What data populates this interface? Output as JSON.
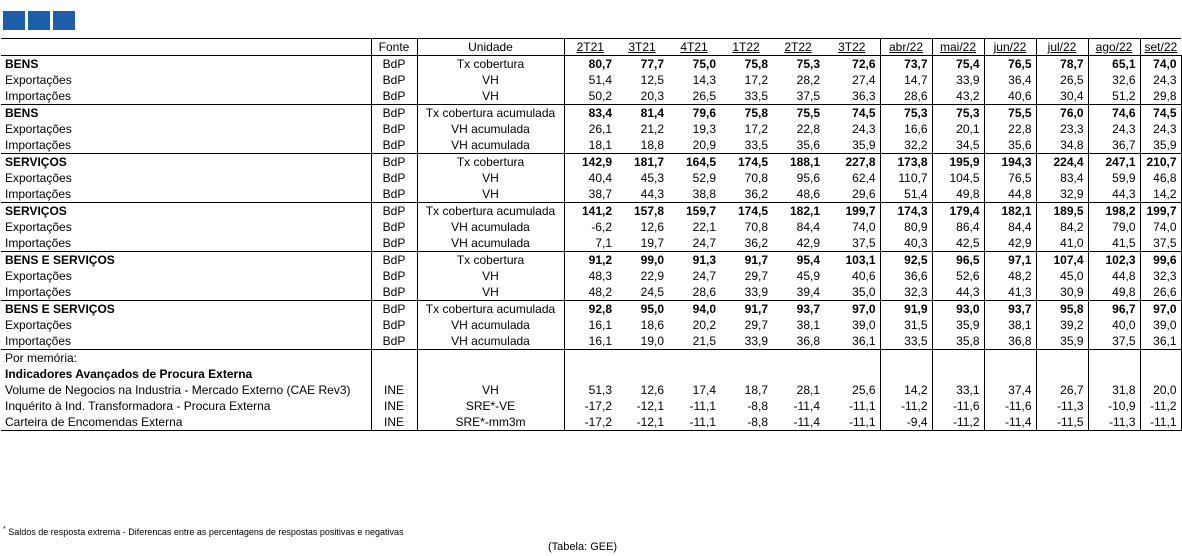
{
  "header": {
    "fonte": "Fonte",
    "unidade": "Unidade",
    "periods": [
      "2T21",
      "3T21",
      "4T21",
      "1T22",
      "2T22",
      "3T22",
      "abr/22",
      "mai/22",
      "jun/22",
      "jul/22",
      "ago/22",
      "set/22"
    ]
  },
  "groups": [
    {
      "rows": [
        {
          "label": "BENS",
          "fonte": "BdP",
          "unidade": "Tx cobertura",
          "values": [
            "80,7",
            "77,7",
            "75,0",
            "75,8",
            "75,3",
            "72,6",
            "73,7",
            "75,4",
            "76,5",
            "78,7",
            "65,1",
            "74,0"
          ],
          "bold": true
        },
        {
          "label": "Exportações",
          "fonte": "BdP",
          "unidade": "VH",
          "values": [
            "51,4",
            "12,5",
            "14,3",
            "17,2",
            "28,2",
            "27,4",
            "14,7",
            "33,9",
            "36,4",
            "26,5",
            "32,6",
            "24,3"
          ]
        },
        {
          "label": "Importações",
          "fonte": "BdP",
          "unidade": "VH",
          "values": [
            "50,2",
            "20,3",
            "26,5",
            "33,5",
            "37,5",
            "36,3",
            "28,6",
            "43,2",
            "40,6",
            "30,4",
            "51,2",
            "29,8"
          ]
        }
      ]
    },
    {
      "rows": [
        {
          "label": "BENS",
          "fonte": "BdP",
          "unidade": "Tx cobertura acumulada",
          "values": [
            "83,4",
            "81,4",
            "79,6",
            "75,8",
            "75,5",
            "74,5",
            "75,3",
            "75,3",
            "75,5",
            "76,0",
            "74,6",
            "74,5"
          ],
          "bold": true
        },
        {
          "label": "Exportações",
          "fonte": "BdP",
          "unidade": "VH acumulada",
          "values": [
            "26,1",
            "21,2",
            "19,3",
            "17,2",
            "22,8",
            "24,3",
            "16,6",
            "20,1",
            "22,8",
            "23,3",
            "24,3",
            "24,3"
          ]
        },
        {
          "label": "Importações",
          "fonte": "BdP",
          "unidade": "VH acumulada",
          "values": [
            "18,1",
            "18,8",
            "20,9",
            "33,5",
            "35,6",
            "35,9",
            "32,2",
            "34,5",
            "35,6",
            "34,8",
            "36,7",
            "35,9"
          ]
        }
      ]
    },
    {
      "rows": [
        {
          "label": "SERVIÇOS",
          "fonte": "BdP",
          "unidade": "Tx cobertura",
          "values": [
            "142,9",
            "181,7",
            "164,5",
            "174,5",
            "188,1",
            "227,8",
            "173,8",
            "195,9",
            "194,3",
            "224,4",
            "247,1",
            "210,7"
          ],
          "bold": true
        },
        {
          "label": "Exportações",
          "fonte": "BdP",
          "unidade": "VH",
          "values": [
            "40,4",
            "45,3",
            "52,9",
            "70,8",
            "95,6",
            "62,4",
            "110,7",
            "104,5",
            "76,5",
            "83,4",
            "59,9",
            "46,8"
          ]
        },
        {
          "label": "Importações",
          "fonte": "BdP",
          "unidade": "VH",
          "values": [
            "38,7",
            "44,3",
            "38,8",
            "36,2",
            "48,6",
            "29,6",
            "51,4",
            "49,8",
            "44,8",
            "32,9",
            "44,3",
            "14,2"
          ]
        }
      ]
    },
    {
      "rows": [
        {
          "label": "SERVIÇOS",
          "fonte": "BdP",
          "unidade": "Tx cobertura acumulada",
          "values": [
            "141,2",
            "157,8",
            "159,7",
            "174,5",
            "182,1",
            "199,7",
            "174,3",
            "179,4",
            "182,1",
            "189,5",
            "198,2",
            "199,7"
          ],
          "bold": true
        },
        {
          "label": "Exportações",
          "fonte": "BdP",
          "unidade": "VH acumulada",
          "values": [
            "-6,2",
            "12,6",
            "22,1",
            "70,8",
            "84,4",
            "74,0",
            "80,9",
            "86,4",
            "84,4",
            "84,2",
            "79,0",
            "74,0"
          ]
        },
        {
          "label": "Importações",
          "fonte": "BdP",
          "unidade": "VH acumulada",
          "values": [
            "7,1",
            "19,7",
            "24,7",
            "36,2",
            "42,9",
            "37,5",
            "40,3",
            "42,5",
            "42,9",
            "41,0",
            "41,5",
            "37,5"
          ]
        }
      ]
    },
    {
      "rows": [
        {
          "label": "BENS E SERVIÇOS",
          "fonte": "BdP",
          "unidade": "Tx cobertura",
          "values": [
            "91,2",
            "99,0",
            "91,3",
            "91,7",
            "95,4",
            "103,1",
            "92,5",
            "96,5",
            "97,1",
            "107,4",
            "102,3",
            "99,6"
          ],
          "bold": true
        },
        {
          "label": "Exportações",
          "fonte": "BdP",
          "unidade": "VH",
          "values": [
            "48,3",
            "22,9",
            "24,7",
            "29,7",
            "45,9",
            "40,6",
            "36,6",
            "52,6",
            "48,2",
            "45,0",
            "44,8",
            "32,3"
          ]
        },
        {
          "label": "Importações",
          "fonte": "BdP",
          "unidade": "VH",
          "values": [
            "48,2",
            "24,5",
            "28,6",
            "33,9",
            "39,4",
            "35,0",
            "32,3",
            "44,3",
            "41,3",
            "30,9",
            "49,8",
            "26,6"
          ]
        }
      ]
    },
    {
      "rows": [
        {
          "label": "BENS E SERVIÇOS",
          "fonte": "BdP",
          "unidade": "Tx cobertura acumulada",
          "values": [
            "92,8",
            "95,0",
            "94,0",
            "91,7",
            "93,7",
            "97,0",
            "91,9",
            "93,0",
            "93,7",
            "95,8",
            "96,7",
            "97,0"
          ],
          "bold": true
        },
        {
          "label": "Exportações",
          "fonte": "BdP",
          "unidade": "VH acumulada",
          "values": [
            "16,1",
            "18,6",
            "20,2",
            "29,7",
            "38,1",
            "39,0",
            "31,5",
            "35,9",
            "38,1",
            "39,2",
            "40,0",
            "39,0"
          ]
        },
        {
          "label": "Importações",
          "fonte": "BdP",
          "unidade": "VH acumulada",
          "values": [
            "16,1",
            "19,0",
            "21,5",
            "33,9",
            "36,8",
            "36,1",
            "33,5",
            "35,8",
            "36,8",
            "35,9",
            "37,5",
            "36,1"
          ]
        }
      ]
    }
  ],
  "memo": {
    "intro": "Por memória:",
    "title": "Indicadores Avançados de Procura Externa",
    "rows": [
      {
        "label": "Volume de Negocios na Industria - Mercado Externo (CAE Rev3)",
        "fonte": "INE",
        "unidade": "VH",
        "values": [
          "51,3",
          "12,6",
          "17,4",
          "18,7",
          "28,1",
          "25,6",
          "14,2",
          "33,1",
          "37,4",
          "26,7",
          "31,8",
          "20,0"
        ]
      },
      {
        "label": "Inquérito à Ind. Transformadora - Procura Externa",
        "fonte": "INE",
        "unidade": "SRE*-VE",
        "values": [
          "-17,2",
          "-12,1",
          "-11,1",
          "-8,8",
          "-11,4",
          "-11,1",
          "-11,2",
          "-11,6",
          "-11,6",
          "-11,3",
          "-10,9",
          "-11,2"
        ]
      },
      {
        "label": "Carteira de Encomendas Externa",
        "fonte": "INE",
        "unidade": "SRE*-mm3m",
        "values": [
          "-17,2",
          "-12,1",
          "-11,1",
          "-8,8",
          "-11,4",
          "-11,1",
          "-9,4",
          "-11,2",
          "-11,4",
          "-11,5",
          "-11,3",
          "-11,1"
        ]
      }
    ]
  },
  "footnote": {
    "mark": "*",
    "text": "Saldos de resposta extrema - Diferencas entre as percentagens de respostas positivas e negativas"
  },
  "source": "(Tabela: GEE)"
}
